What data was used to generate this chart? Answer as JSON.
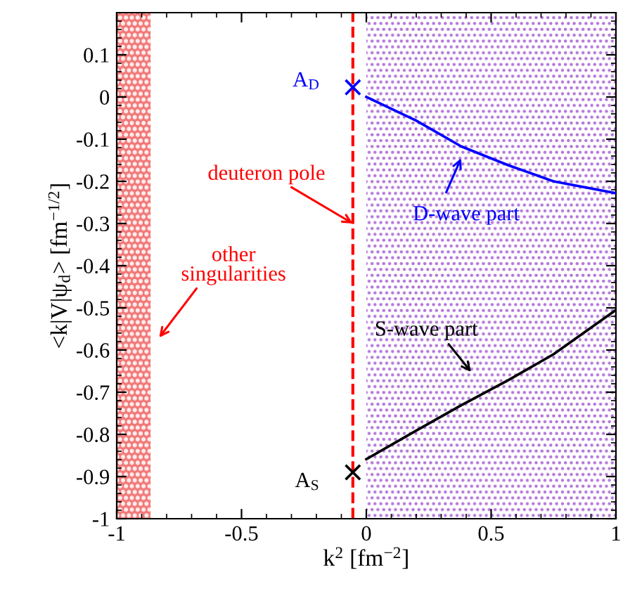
{
  "chart_data": {
    "type": "line",
    "xlabel": "k$^{2}$ [fm$^{−2}$]",
    "ylabel": "<k|V|ψ$_{d}$> [fm$^{−1/2}$]",
    "xlim": [
      -1,
      1
    ],
    "ylim": [
      -1,
      0.2
    ],
    "xticks": [
      -1,
      -0.5,
      0,
      0.5,
      1
    ],
    "yticks": [
      -1,
      -0.9,
      -0.8,
      -0.7,
      -0.6,
      -0.5,
      -0.4,
      -0.3,
      -0.2,
      -0.1,
      0,
      0.1
    ],
    "grid": false,
    "series": [
      {
        "color": "#0000ff",
        "x": [
          0,
          0.2,
          0.38,
          0.57,
          0.75,
          1
        ],
        "values": [
          0,
          -0.056,
          -0.117,
          -0.162,
          -0.2,
          -0.228
        ]
      },
      {
        "color": "#000000",
        "x": [
          0,
          0.2,
          0.38,
          0.57,
          0.75,
          1
        ],
        "values": [
          -0.859,
          -0.791,
          -0.731,
          -0.671,
          -0.61,
          -0.505
        ]
      },
      {
        "type": "scatter",
        "name": "A$_{D}$",
        "color": "#0000ff",
        "marker": "cross",
        "x": [
          -0.054
        ],
        "values": [
          0.023
        ]
      },
      {
        "type": "scatter",
        "name": "A$_{S}$",
        "color": "#000000",
        "marker": "cross",
        "x": [
          -0.054
        ],
        "values": [
          -0.89
        ]
      }
    ],
    "ref_lines": [
      {
        "axis": "x",
        "value": -0.054,
        "color": "#ff0000",
        "line_style": "dashed"
      }
    ],
    "bands": [
      {
        "axis": "x",
        "from": -1,
        "to": -0.864,
        "color": "#f06060"
      },
      {
        "axis": "x",
        "from": 0,
        "to": 1,
        "color": "#b070d8"
      }
    ],
    "annotations": [
      {
        "text": "deuteron pole",
        "x": -0.054,
        "y": -0.3
      },
      "other\nsingularities",
      "D-wave part",
      "S-wave part"
    ]
  }
}
